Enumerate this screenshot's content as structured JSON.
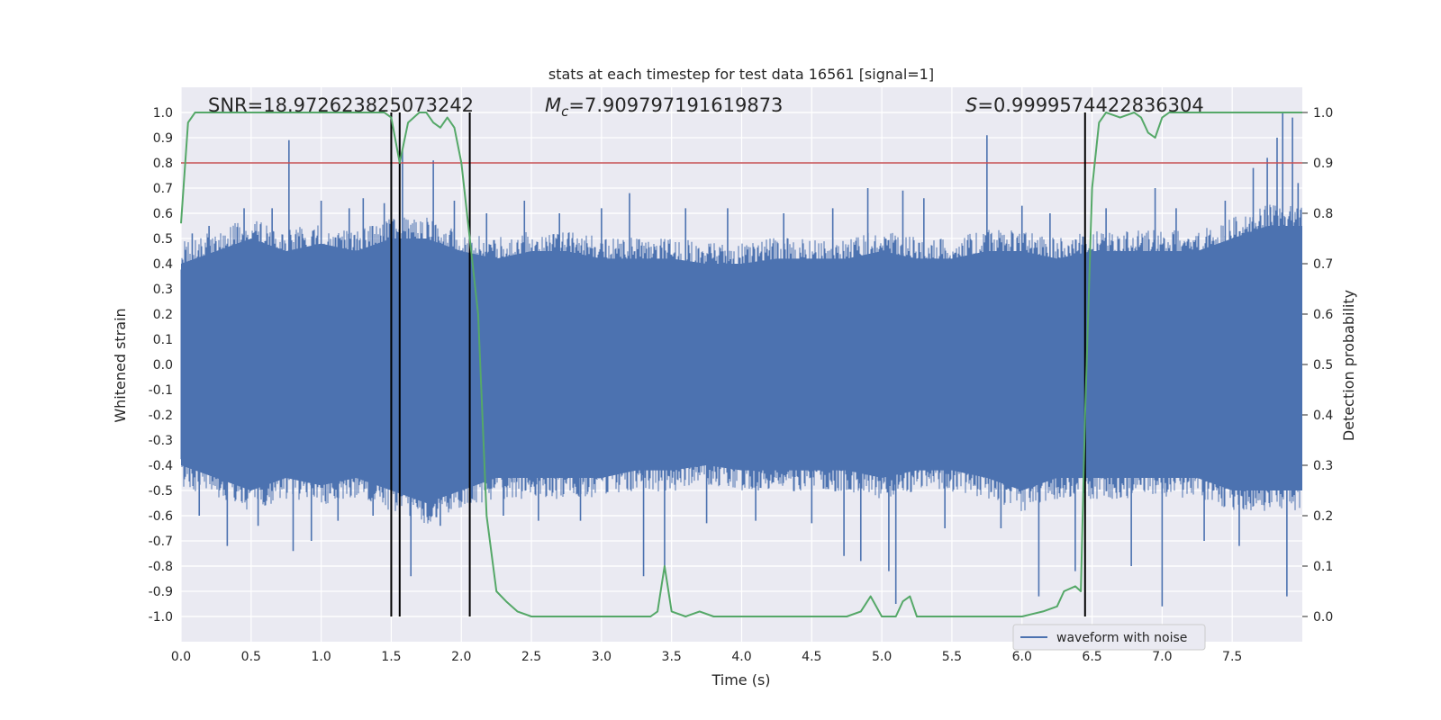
{
  "chart_data": {
    "type": "line",
    "title": "stats at each timestep for test data 16561 [signal=1]",
    "xlabel": "Time (s)",
    "ylabel": "Whitened strain",
    "y2label": "Detection probability",
    "xlim": [
      0.0,
      8.0
    ],
    "ylim": [
      -1.1,
      1.1
    ],
    "y2lim": [
      -0.05,
      1.05
    ],
    "xticks": [
      "0.0",
      "0.5",
      "1.0",
      "1.5",
      "2.0",
      "2.5",
      "3.0",
      "3.5",
      "4.0",
      "4.5",
      "5.0",
      "5.5",
      "6.0",
      "6.5",
      "7.0",
      "7.5"
    ],
    "yticks": [
      "1.0",
      "0.9",
      "0.8",
      "0.7",
      "0.6",
      "0.5",
      "0.4",
      "0.3",
      "0.2",
      "0.1",
      "0.0",
      "-0.1",
      "-0.2",
      "-0.3",
      "-0.4",
      "-0.5",
      "-0.6",
      "-0.7",
      "-0.8",
      "-0.9",
      "-1.0"
    ],
    "y2ticks": [
      "1.0",
      "0.9",
      "0.8",
      "0.7",
      "0.6",
      "0.5",
      "0.4",
      "0.3",
      "0.2",
      "0.1",
      "0.0"
    ],
    "annotations": {
      "snr": "SNR=18.972623825073242",
      "mc_symbol": "M",
      "mc_sub": "c",
      "mc_value": "=7.909797191619873",
      "s_symbol": "S",
      "s_value": "=0.9999574422836304"
    },
    "legend": {
      "label": "waveform with noise",
      "location": "lower-right"
    },
    "threshold": {
      "y2": 0.9,
      "color": "#c44e52"
    },
    "vertical_lines_x": [
      1.5,
      1.56,
      2.06,
      6.45
    ],
    "colors": {
      "strain": "#4c72b0",
      "probability": "#55a868",
      "vlines": "#000000",
      "plot_bg": "#eaeaf2",
      "grid": "#ffffff"
    },
    "strain_envelope": {
      "x": [
        0.0,
        0.25,
        0.5,
        0.75,
        1.0,
        1.25,
        1.5,
        1.75,
        2.0,
        2.25,
        2.5,
        2.75,
        3.0,
        3.25,
        3.5,
        3.75,
        4.0,
        4.25,
        4.5,
        4.75,
        5.0,
        5.25,
        5.5,
        5.75,
        6.0,
        6.25,
        6.5,
        6.75,
        7.0,
        7.25,
        7.5,
        7.75,
        8.0
      ],
      "upper": [
        0.4,
        0.45,
        0.5,
        0.45,
        0.48,
        0.45,
        0.5,
        0.5,
        0.45,
        0.42,
        0.45,
        0.45,
        0.42,
        0.42,
        0.42,
        0.4,
        0.4,
        0.42,
        0.42,
        0.42,
        0.45,
        0.42,
        0.42,
        0.45,
        0.45,
        0.42,
        0.45,
        0.45,
        0.45,
        0.45,
        0.5,
        0.55,
        0.55
      ],
      "lower": [
        -0.4,
        -0.45,
        -0.5,
        -0.45,
        -0.48,
        -0.45,
        -0.5,
        -0.55,
        -0.5,
        -0.45,
        -0.45,
        -0.45,
        -0.45,
        -0.42,
        -0.42,
        -0.4,
        -0.42,
        -0.42,
        -0.42,
        -0.42,
        -0.45,
        -0.42,
        -0.42,
        -0.45,
        -0.5,
        -0.45,
        -0.45,
        -0.45,
        -0.45,
        -0.45,
        -0.5,
        -0.5,
        -0.5
      ]
    },
    "strain_spikes": [
      {
        "x": 0.08,
        "y": 0.52
      },
      {
        "x": 0.13,
        "y": -0.6
      },
      {
        "x": 0.2,
        "y": 0.55
      },
      {
        "x": 0.33,
        "y": -0.72
      },
      {
        "x": 0.45,
        "y": 0.62
      },
      {
        "x": 0.55,
        "y": -0.64
      },
      {
        "x": 0.65,
        "y": 0.62
      },
      {
        "x": 0.77,
        "y": 0.89
      },
      {
        "x": 0.8,
        "y": -0.74
      },
      {
        "x": 0.93,
        "y": -0.7
      },
      {
        "x": 1.0,
        "y": 0.65
      },
      {
        "x": 1.12,
        "y": -0.62
      },
      {
        "x": 1.2,
        "y": 0.62
      },
      {
        "x": 1.3,
        "y": 0.66
      },
      {
        "x": 1.37,
        "y": -0.6
      },
      {
        "x": 1.45,
        "y": 0.64
      },
      {
        "x": 1.58,
        "y": 0.85
      },
      {
        "x": 1.64,
        "y": -0.84
      },
      {
        "x": 1.8,
        "y": 0.81
      },
      {
        "x": 1.85,
        "y": -0.64
      },
      {
        "x": 1.95,
        "y": 0.65
      },
      {
        "x": 2.18,
        "y": 0.6
      },
      {
        "x": 2.3,
        "y": -0.6
      },
      {
        "x": 2.45,
        "y": 0.65
      },
      {
        "x": 2.55,
        "y": -0.62
      },
      {
        "x": 2.7,
        "y": 0.6
      },
      {
        "x": 2.85,
        "y": -0.62
      },
      {
        "x": 3.0,
        "y": 0.62
      },
      {
        "x": 3.2,
        "y": 0.68
      },
      {
        "x": 3.3,
        "y": -0.84
      },
      {
        "x": 3.45,
        "y": -0.8
      },
      {
        "x": 3.6,
        "y": 0.62
      },
      {
        "x": 3.75,
        "y": -0.63
      },
      {
        "x": 3.9,
        "y": 0.62
      },
      {
        "x": 4.1,
        "y": -0.62
      },
      {
        "x": 4.3,
        "y": 0.6
      },
      {
        "x": 4.5,
        "y": -0.63
      },
      {
        "x": 4.65,
        "y": 0.62
      },
      {
        "x": 4.73,
        "y": -0.76
      },
      {
        "x": 4.85,
        "y": -0.78
      },
      {
        "x": 4.9,
        "y": 0.7
      },
      {
        "x": 5.05,
        "y": -0.82
      },
      {
        "x": 5.1,
        "y": -0.95
      },
      {
        "x": 5.15,
        "y": 0.69
      },
      {
        "x": 5.3,
        "y": 0.66
      },
      {
        "x": 5.45,
        "y": -0.65
      },
      {
        "x": 5.75,
        "y": 0.91
      },
      {
        "x": 5.85,
        "y": -0.65
      },
      {
        "x": 6.0,
        "y": 0.63
      },
      {
        "x": 6.12,
        "y": -0.92
      },
      {
        "x": 6.2,
        "y": 0.6
      },
      {
        "x": 6.38,
        "y": -0.82
      },
      {
        "x": 6.6,
        "y": 0.62
      },
      {
        "x": 6.78,
        "y": -0.8
      },
      {
        "x": 6.95,
        "y": 0.7
      },
      {
        "x": 7.0,
        "y": -0.96
      },
      {
        "x": 7.1,
        "y": 0.62
      },
      {
        "x": 7.3,
        "y": -0.7
      },
      {
        "x": 7.45,
        "y": 0.65
      },
      {
        "x": 7.55,
        "y": -0.72
      },
      {
        "x": 7.65,
        "y": 0.78
      },
      {
        "x": 7.75,
        "y": 0.82
      },
      {
        "x": 7.82,
        "y": 0.9
      },
      {
        "x": 7.86,
        "y": 1.0
      },
      {
        "x": 7.89,
        "y": -0.92
      },
      {
        "x": 7.93,
        "y": 0.98
      },
      {
        "x": 7.97,
        "y": 0.72
      }
    ],
    "probability": {
      "x": [
        0.0,
        0.05,
        0.1,
        0.2,
        0.5,
        1.0,
        1.3,
        1.45,
        1.5,
        1.56,
        1.62,
        1.7,
        1.75,
        1.8,
        1.85,
        1.9,
        1.95,
        2.0,
        2.06,
        2.12,
        2.18,
        2.25,
        2.32,
        2.4,
        2.5,
        2.65,
        2.8,
        3.0,
        3.2,
        3.35,
        3.4,
        3.45,
        3.5,
        3.6,
        3.7,
        3.8,
        4.0,
        4.3,
        4.6,
        4.75,
        4.85,
        4.92,
        5.0,
        5.1,
        5.15,
        5.2,
        5.25,
        5.4,
        5.6,
        6.0,
        6.15,
        6.25,
        6.3,
        6.38,
        6.42,
        6.45,
        6.5,
        6.55,
        6.6,
        6.7,
        6.8,
        6.85,
        6.9,
        6.95,
        7.0,
        7.05,
        7.1,
        7.3,
        7.6,
        8.0
      ],
      "y": [
        0.78,
        0.98,
        1.0,
        1.0,
        1.0,
        1.0,
        1.0,
        1.0,
        0.99,
        0.9,
        0.98,
        1.0,
        1.0,
        0.98,
        0.97,
        0.99,
        0.97,
        0.9,
        0.75,
        0.6,
        0.2,
        0.05,
        0.03,
        0.01,
        0.0,
        0.0,
        0.0,
        0.0,
        0.0,
        0.0,
        0.01,
        0.1,
        0.01,
        0.0,
        0.01,
        0.0,
        0.0,
        0.0,
        0.0,
        0.0,
        0.01,
        0.04,
        0.0,
        0.0,
        0.03,
        0.04,
        0.0,
        0.0,
        0.0,
        0.0,
        0.01,
        0.02,
        0.05,
        0.06,
        0.05,
        0.4,
        0.85,
        0.98,
        1.0,
        0.99,
        1.0,
        0.99,
        0.96,
        0.95,
        0.99,
        1.0,
        1.0,
        1.0,
        1.0,
        1.0
      ]
    }
  }
}
